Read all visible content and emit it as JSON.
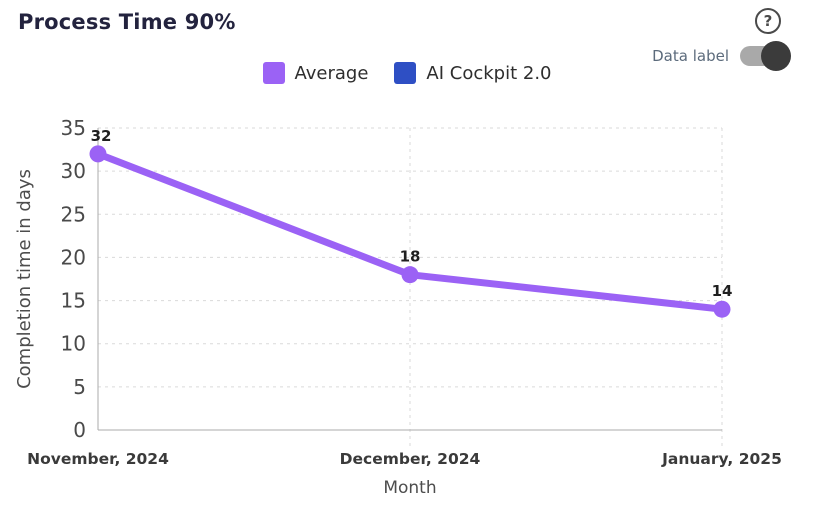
{
  "header": {
    "title": "Process Time 90%",
    "help_glyph": "?",
    "toggle": {
      "label": "Data label",
      "state": "on"
    }
  },
  "legend": [
    {
      "label": "Average",
      "color": "#9B62F5"
    },
    {
      "label": "AI Cockpit 2.0",
      "color": "#2E4FC4"
    }
  ],
  "colors": {
    "title_text": "#23233E",
    "grid_line": "#DADADA",
    "axis_line": "#ABABAB",
    "tick_text": "#4A4A4A",
    "month_text": "#3A3A3A",
    "axis_title_text": "#4D4D4D",
    "data_label_text": "#1F1F1F",
    "toggle_track": "#A9A9A9",
    "toggle_knob": "#3B3B3B"
  },
  "chart_data": {
    "type": "line",
    "title": "Process Time 90%",
    "xlabel": "Month",
    "ylabel": "Completion time in days",
    "categories": [
      "November, 2024",
      "December, 2024",
      "January, 2025"
    ],
    "series": [
      {
        "name": "Average",
        "color": "#9B62F5",
        "values": [
          32,
          18,
          14
        ]
      },
      {
        "name": "AI Cockpit 2.0",
        "color": "#2E4FC4",
        "values": []
      }
    ],
    "ylim": [
      0,
      35
    ],
    "yticks": [
      0,
      5,
      10,
      15,
      20,
      25,
      30,
      35
    ],
    "grid": "dashed",
    "legend_position": "top",
    "data_labels_visible": true
  }
}
